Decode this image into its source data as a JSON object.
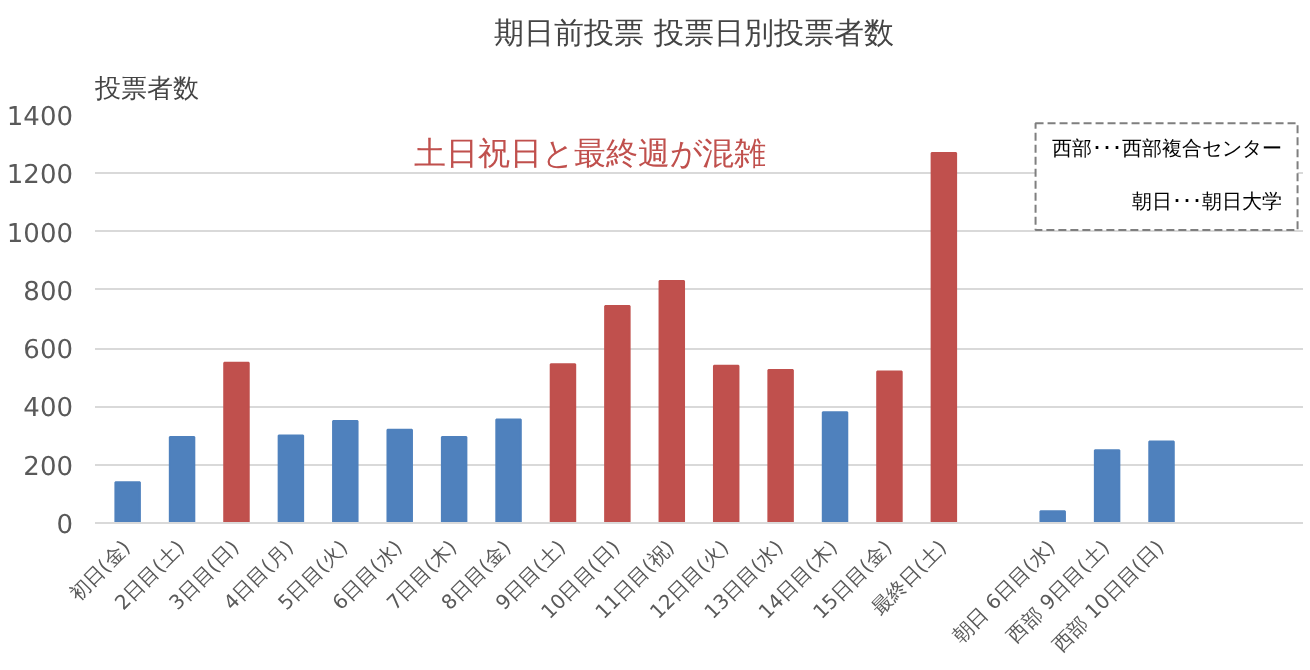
{
  "chart_data": {
    "type": "bar",
    "title": "期日前投票  投票日別投票者数",
    "ylabel": "投票者数",
    "categories": [
      "初日(金)",
      "2日目(土)",
      "3日目(日)",
      "4日目(月)",
      "5日目(火)",
      "6日目(水)",
      "7日目(木)",
      "8日目(金)",
      "9日目(土)",
      "10日目(日)",
      "11日目(祝)",
      "12日目(火)",
      "13日目(水)",
      "14日目(木)",
      "15日目(金)",
      "最終日(土)",
      null,
      "朝日 6日目(水)",
      "西部 9日目(土)",
      "西部 10日目(日)"
    ],
    "values": [
      140,
      295,
      550,
      300,
      350,
      320,
      295,
      355,
      545,
      745,
      830,
      540,
      525,
      380,
      520,
      1270,
      null,
      40,
      250,
      280
    ],
    "colors": [
      "#4f81bd",
      "#4f81bd",
      "#c0504d",
      "#4f81bd",
      "#4f81bd",
      "#4f81bd",
      "#4f81bd",
      "#4f81bd",
      "#c0504d",
      "#c0504d",
      "#c0504d",
      "#c0504d",
      "#c0504d",
      "#4f81bd",
      "#c0504d",
      "#c0504d",
      "#4f81bd",
      "#4f81bd",
      "#4f81bd",
      "#4f81bd"
    ],
    "ylim": [
      0,
      1400
    ],
    "yticks": [
      0,
      200,
      400,
      600,
      800,
      1000,
      1200,
      1400
    ],
    "grid": "y",
    "annotations": [
      "土日祝日と最終週が混雑",
      "西部･･･西部複合センター",
      "朝日･･･朝日大学"
    ]
  }
}
